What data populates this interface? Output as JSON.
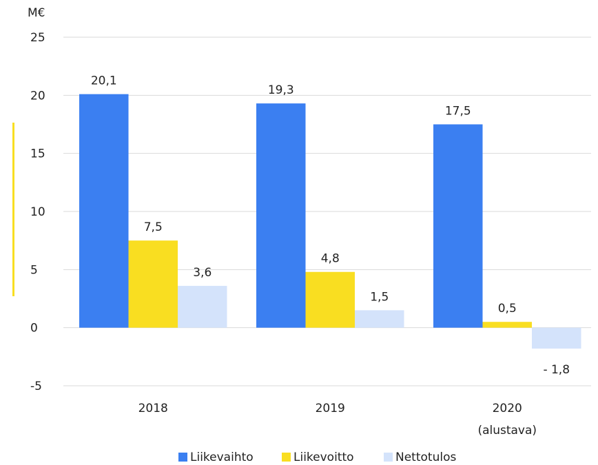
{
  "chart_data": {
    "type": "bar",
    "unit_label": "M€",
    "categories": [
      {
        "line1": "2018",
        "line2": ""
      },
      {
        "line1": "2019",
        "line2": ""
      },
      {
        "line1": "2020",
        "line2": "(alustava)"
      }
    ],
    "series": [
      {
        "name": "Liikevaihto",
        "color": "#3b7ff1",
        "values": [
          20.1,
          19.3,
          17.5
        ],
        "labels": [
          "20,1",
          "19,3",
          "17,5"
        ]
      },
      {
        "name": "Liikevoitto",
        "color": "#f9de21",
        "values": [
          7.5,
          4.8,
          0.5
        ],
        "labels": [
          "7,5",
          "4,8",
          "0,5"
        ]
      },
      {
        "name": "Nettotulos",
        "color": "#d4e3fb",
        "values": [
          3.6,
          1.5,
          -1.8
        ],
        "labels": [
          "3,6",
          "1,5",
          "- 1,8"
        ]
      }
    ],
    "yticks": [
      {
        "value": 25,
        "label": "25"
      },
      {
        "value": 20,
        "label": "20"
      },
      {
        "value": 15,
        "label": "15"
      },
      {
        "value": 10,
        "label": "10"
      },
      {
        "value": 5,
        "label": "5"
      },
      {
        "value": 0,
        "label": "0"
      },
      {
        "value": -5,
        "label": "-5"
      }
    ],
    "ylim": [
      -5,
      25
    ],
    "grid": true,
    "legend_position": "bottom",
    "accent_bar_color": "#f9de21",
    "gridline_color": "#d9d9d9"
  }
}
